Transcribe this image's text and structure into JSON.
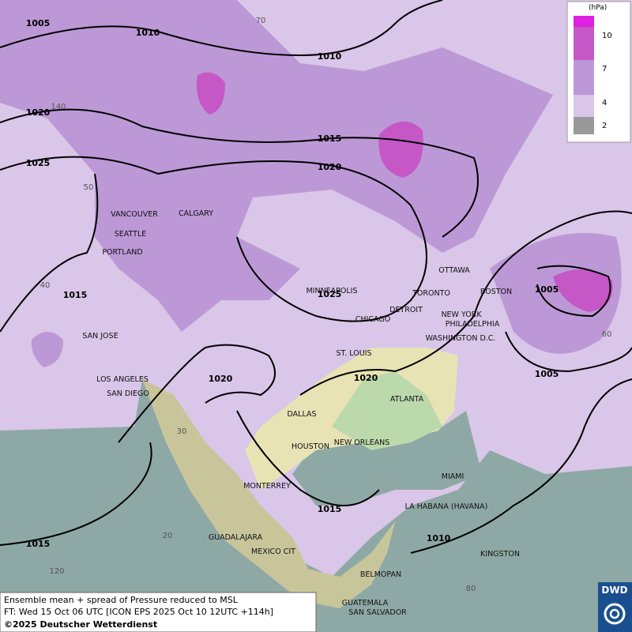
{
  "legend": {
    "unit": "(hPa)",
    "levels": [
      "10",
      "7",
      "4",
      "2"
    ]
  },
  "cities": [
    "VANCOUVER",
    "CALGARY",
    "SEATTLE",
    "PORTLAND",
    "SAN JOSE",
    "LOS ANGELES",
    "SAN DIEGO",
    "MINNEAPOLIS",
    "CHICAGO",
    "DETROIT",
    "TORONTO",
    "OTTAWA",
    "BOSTON",
    "NEW YORK",
    "PHILADELPHIA",
    "WASHINGTON D.C.",
    "ST. LOUIS",
    "ATLANTA",
    "DALLAS",
    "HOUSTON",
    "NEW ORLEANS",
    "MIAMI",
    "MONTERREY",
    "LA HABANA (HAVANA)",
    "GUADALAJARA",
    "MEXICO CIT",
    "KINGSTON",
    "BELMOPAN",
    "GUATEMALA",
    "SAN SALVADOR"
  ],
  "isobar_labels": [
    "1005",
    "1010",
    "1010",
    "1020",
    "1015",
    "1025",
    "1020",
    "1015",
    "1025",
    "1005",
    "1005",
    "1020",
    "1020",
    "1015",
    "1015",
    "1010"
  ],
  "graticule_labels": [
    "70",
    "140",
    "50",
    "40",
    "60",
    "30",
    "20",
    "120",
    "80"
  ],
  "caption": {
    "line1": "Ensemble mean + spread of Pressure reduced to MSL",
    "line2": "FT: Wed 15 Oct 06 UTC [ICON EPS 2025 Oct 10 12UTC +114h]",
    "line3": "©2025 Deutscher Wetterdienst"
  },
  "logo": "DWD"
}
